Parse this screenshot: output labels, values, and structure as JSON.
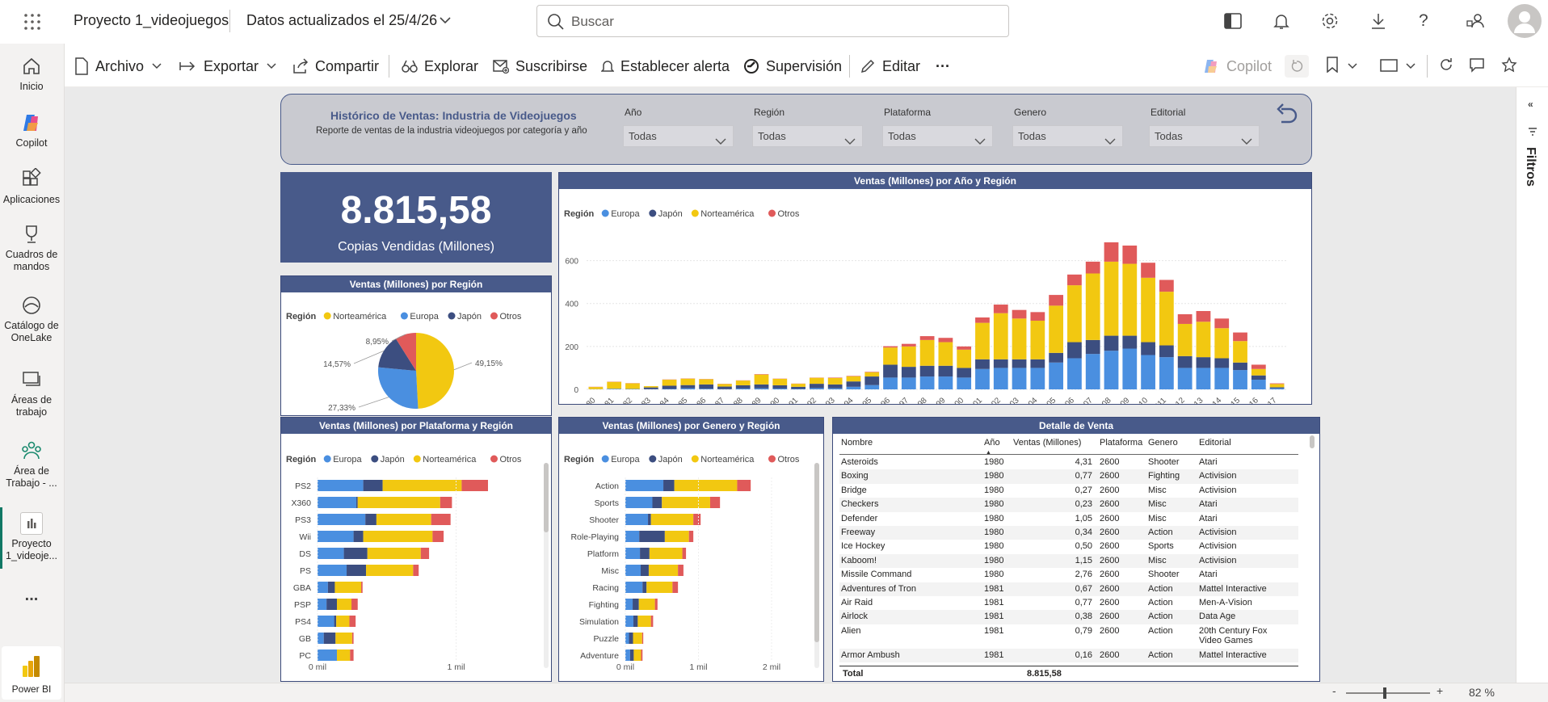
{
  "app": {
    "report_name": "Proyecto 1_videojuegos",
    "data_updated": "Datos actualizados el 25/4/26",
    "search_placeholder": "Buscar"
  },
  "rail": [
    {
      "label": "Inicio",
      "icon": "home-icon"
    },
    {
      "label": "Copilot",
      "icon": "copilot-icon"
    },
    {
      "label": "Aplicaciones",
      "icon": "apps-icon"
    },
    {
      "label": "Cuadros de mandos",
      "icon": "trophy-icon"
    },
    {
      "label": "Catálogo de OneLake",
      "icon": "onelake-icon"
    },
    {
      "label": "Áreas de trabajo",
      "icon": "workspaces-icon"
    },
    {
      "label": "Área de Trabajo - ...",
      "icon": "workspace-icon"
    },
    {
      "label": "Proyecto 1_videoje...",
      "icon": "report-icon"
    },
    {
      "label": "...",
      "icon": "more-icon"
    },
    {
      "label": "Power BI",
      "icon": "powerbi-icon"
    }
  ],
  "toolbar": {
    "archivo": "Archivo",
    "exportar": "Exportar",
    "compartir": "Compartir",
    "explorar": "Explorar",
    "suscribirse": "Suscribirse",
    "alerta": "Establecer alerta",
    "supervision": "Supervisión",
    "editar": "Editar",
    "more": "···",
    "copilot": "Copilot"
  },
  "filters_pane": {
    "label": "Filtros"
  },
  "status": {
    "zoom": "82 %",
    "minus": "-",
    "plus": "+"
  },
  "header": {
    "title": "Histórico de Ventas: Industria de Videojuegos",
    "subtitle": "Reporte de ventas de la industria videojuegos por categoría y año",
    "slicers": [
      {
        "label": "Año",
        "value": "Todas"
      },
      {
        "label": "Región",
        "value": "Todas"
      },
      {
        "label": "Plataforma",
        "value": "Todas"
      },
      {
        "label": "Genero",
        "value": "Todas"
      },
      {
        "label": "Editorial",
        "value": "Todas"
      }
    ]
  },
  "kpi": {
    "value": "8.815,58",
    "label": "Copias Vendidas (Millones)"
  },
  "colors": {
    "Europa": "#4a8fe0",
    "Japón": "#3c4e80",
    "Norteamérica": "#f2c811",
    "Otros": "#e05a5a",
    "header": "#485a8a"
  },
  "chart_data": [
    {
      "type": "bar",
      "title": "Ventas (Millones) por Año y Región",
      "legend_title": "Región",
      "stacked": true,
      "categories": [
        "1980",
        "1981",
        "1982",
        "1983",
        "1984",
        "1985",
        "1986",
        "1987",
        "1988",
        "1989",
        "1990",
        "1991",
        "1992",
        "1993",
        "1994",
        "1995",
        "1996",
        "1997",
        "1998",
        "1999",
        "2000",
        "2001",
        "2002",
        "2003",
        "2004",
        "2005",
        "2006",
        "2007",
        "2008",
        "2009",
        "2010",
        "2011",
        "2012",
        "2013",
        "2014",
        "2015",
        "2016",
        "2017"
      ],
      "series": [
        {
          "name": "Europa",
          "values": [
            1,
            3,
            2,
            1,
            2,
            5,
            3,
            1,
            4,
            5,
            4,
            2,
            6,
            5,
            12,
            20,
            55,
            55,
            60,
            60,
            55,
            95,
            100,
            100,
            100,
            125,
            145,
            165,
            180,
            190,
            160,
            150,
            100,
            100,
            100,
            90,
            45,
            5
          ]
        },
        {
          "name": "Japón",
          "values": [
            0,
            0,
            0,
            8,
            15,
            15,
            20,
            12,
            15,
            18,
            15,
            10,
            20,
            18,
            25,
            40,
            60,
            50,
            50,
            50,
            45,
            45,
            40,
            40,
            40,
            45,
            75,
            65,
            70,
            60,
            60,
            55,
            55,
            50,
            45,
            35,
            20,
            5
          ]
        },
        {
          "name": "Norteamérica",
          "values": [
            10,
            32,
            26,
            6,
            28,
            30,
            24,
            12,
            22,
            46,
            30,
            14,
            28,
            30,
            24,
            20,
            80,
            95,
            120,
            110,
            85,
            170,
            215,
            190,
            180,
            220,
            265,
            310,
            345,
            335,
            300,
            250,
            150,
            165,
            140,
            100,
            30,
            15
          ]
        },
        {
          "name": "Otros",
          "values": [
            1,
            1,
            1,
            0,
            1,
            1,
            1,
            1,
            1,
            2,
            1,
            1,
            1,
            2,
            2,
            2,
            6,
            12,
            18,
            20,
            15,
            25,
            40,
            40,
            40,
            50,
            50,
            55,
            90,
            85,
            70,
            55,
            45,
            50,
            45,
            40,
            20,
            3
          ]
        }
      ],
      "ylim": [
        0,
        700
      ],
      "yticks": [
        0,
        200,
        400,
        600
      ]
    },
    {
      "type": "pie",
      "title": "Ventas (Millones) por Región",
      "legend_title": "Región",
      "slices": [
        {
          "name": "Norteamérica",
          "value": 49.15,
          "label": "49,15%"
        },
        {
          "name": "Europa",
          "value": 27.33,
          "label": "27,33%"
        },
        {
          "name": "Japón",
          "value": 14.57,
          "label": "14,57%"
        },
        {
          "name": "Otros",
          "value": 8.95,
          "label": "8,95%"
        }
      ]
    },
    {
      "type": "bar",
      "orientation": "horizontal",
      "title": "Ventas (Millones) por Plataforma y Región",
      "legend_title": "Región",
      "stacked": true,
      "categories": [
        "PS2",
        "X360",
        "PS3",
        "Wii",
        "DS",
        "PS",
        "GBA",
        "PSP",
        "PS4",
        "GB",
        "PC"
      ],
      "series": [
        {
          "name": "Europa",
          "values": [
            330,
            280,
            345,
            260,
            190,
            210,
            75,
            65,
            120,
            45,
            140
          ]
        },
        {
          "name": "Japón",
          "values": [
            140,
            10,
            80,
            70,
            170,
            140,
            50,
            75,
            15,
            85,
            0
          ]
        },
        {
          "name": "Norteamérica",
          "values": [
            570,
            595,
            395,
            500,
            385,
            340,
            190,
            105,
            95,
            120,
            95
          ]
        },
        {
          "name": "Otros",
          "values": [
            190,
            85,
            140,
            80,
            60,
            40,
            10,
            45,
            45,
            10,
            25
          ]
        }
      ],
      "xticks": [
        "0 mil",
        "1 mil"
      ],
      "xlim": [
        0,
        1300
      ]
    },
    {
      "type": "bar",
      "orientation": "horizontal",
      "title": "Ventas (Millones) por Genero y Región",
      "legend_title": "Región",
      "stacked": true,
      "categories": [
        "Action",
        "Sports",
        "Shooter",
        "Role-Playing",
        "Platform",
        "Misc",
        "Racing",
        "Fighting",
        "Simulation",
        "Puzzle",
        "Adventure"
      ],
      "series": [
        {
          "name": "Europa",
          "values": [
            520,
            370,
            310,
            190,
            200,
            210,
            235,
            100,
            110,
            50,
            65
          ]
        },
        {
          "name": "Japón",
          "values": [
            150,
            130,
            40,
            350,
            130,
            110,
            55,
            85,
            60,
            55,
            50
          ]
        },
        {
          "name": "Norteamérica",
          "values": [
            860,
            660,
            580,
            330,
            450,
            400,
            355,
            220,
            180,
            125,
            100
          ]
        },
        {
          "name": "Otros",
          "values": [
            185,
            135,
            100,
            60,
            50,
            75,
            75,
            35,
            30,
            15,
            20
          ]
        }
      ],
      "xticks": [
        "0 mil",
        "1 mil",
        "2 mil"
      ],
      "xlim": [
        0,
        2100
      ]
    }
  ],
  "table": {
    "title": "Detalle de Venta",
    "columns": [
      "Nombre",
      "Año",
      "Ventas (Millones)",
      "Plataforma",
      "Genero",
      "Editorial"
    ],
    "rows": [
      [
        "Asteroids",
        "1980",
        "4,31",
        "2600",
        "Shooter",
        "Atari"
      ],
      [
        "Boxing",
        "1980",
        "0,77",
        "2600",
        "Fighting",
        "Activision"
      ],
      [
        "Bridge",
        "1980",
        "0,27",
        "2600",
        "Misc",
        "Activision"
      ],
      [
        "Checkers",
        "1980",
        "0,23",
        "2600",
        "Misc",
        "Atari"
      ],
      [
        "Defender",
        "1980",
        "1,05",
        "2600",
        "Misc",
        "Atari"
      ],
      [
        "Freeway",
        "1980",
        "0,34",
        "2600",
        "Action",
        "Activision"
      ],
      [
        "Ice Hockey",
        "1980",
        "0,50",
        "2600",
        "Sports",
        "Activision"
      ],
      [
        "Kaboom!",
        "1980",
        "1,15",
        "2600",
        "Misc",
        "Activision"
      ],
      [
        "Missile Command",
        "1980",
        "2,76",
        "2600",
        "Shooter",
        "Atari"
      ],
      [
        "Adventures of Tron",
        "1981",
        "0,67",
        "2600",
        "Action",
        "Mattel Interactive"
      ],
      [
        "Air Raid",
        "1981",
        "0,77",
        "2600",
        "Action",
        "Men-A-Vision"
      ],
      [
        "Airlock",
        "1981",
        "0,38",
        "2600",
        "Action",
        "Data Age"
      ],
      [
        "Alien",
        "1981",
        "0,79",
        "2600",
        "Action",
        "20th Century Fox Video Games"
      ],
      [
        "Armor Ambush",
        "1981",
        "0,16",
        "2600",
        "Action",
        "Mattel Interactive"
      ]
    ],
    "total_label": "Total",
    "total_value": "8.815,58"
  }
}
